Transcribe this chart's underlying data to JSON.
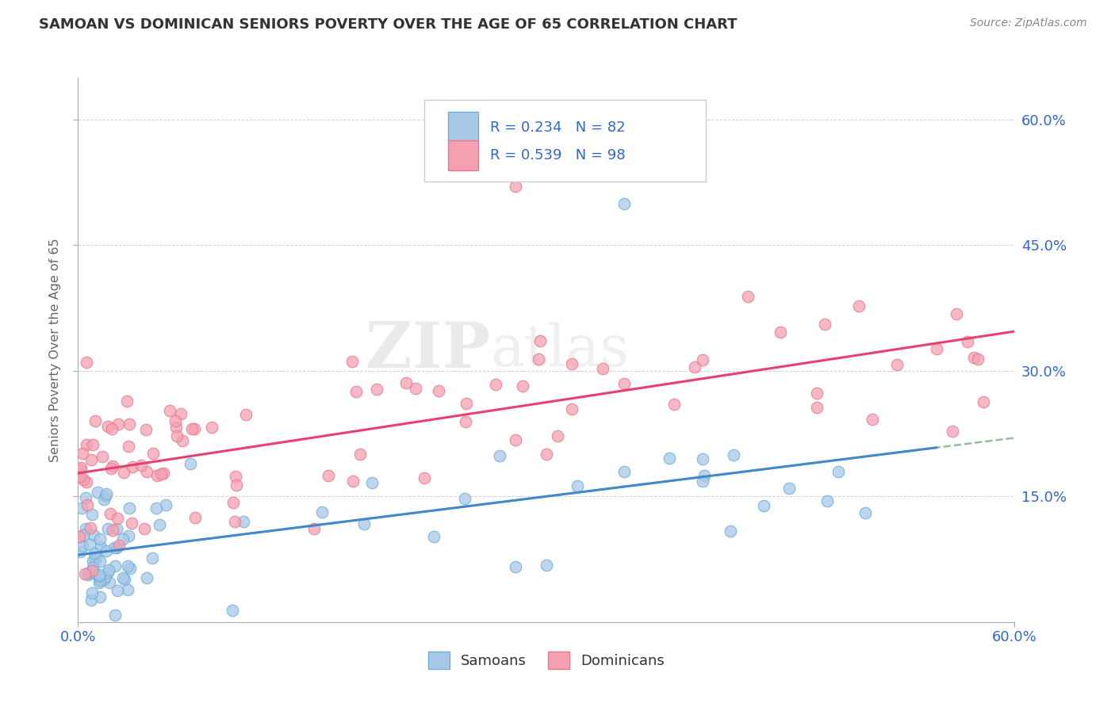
{
  "title": "SAMOAN VS DOMINICAN SENIORS POVERTY OVER THE AGE OF 65 CORRELATION CHART",
  "source": "Source: ZipAtlas.com",
  "ylabel": "Seniors Poverty Over the Age of 65",
  "xlim": [
    0.0,
    0.6
  ],
  "ylim": [
    0.0,
    0.65
  ],
  "yticks": [
    0.15,
    0.3,
    0.45,
    0.6
  ],
  "ytick_labels": [
    "15.0%",
    "30.0%",
    "45.0%",
    "60.0%"
  ],
  "samoan_color": "#a8c8e8",
  "samoan_edge_color": "#6baed6",
  "dominican_color": "#f4a0b0",
  "dominican_edge_color": "#e87890",
  "samoan_line_color": "#4488cc",
  "dominican_line_color": "#e84070",
  "dashed_line_color": "#99bb99",
  "samoan_R": 0.234,
  "samoan_N": 82,
  "dominican_R": 0.539,
  "dominican_N": 98,
  "watermark_zip": "ZIP",
  "watermark_atlas": "atlas",
  "background_color": "#ffffff",
  "grid_color": "#cccccc",
  "legend_text_color": "#3366cc",
  "tick_label_color": "#3366cc",
  "title_color": "#333333",
  "source_color": "#888888",
  "ylabel_color": "#666666"
}
